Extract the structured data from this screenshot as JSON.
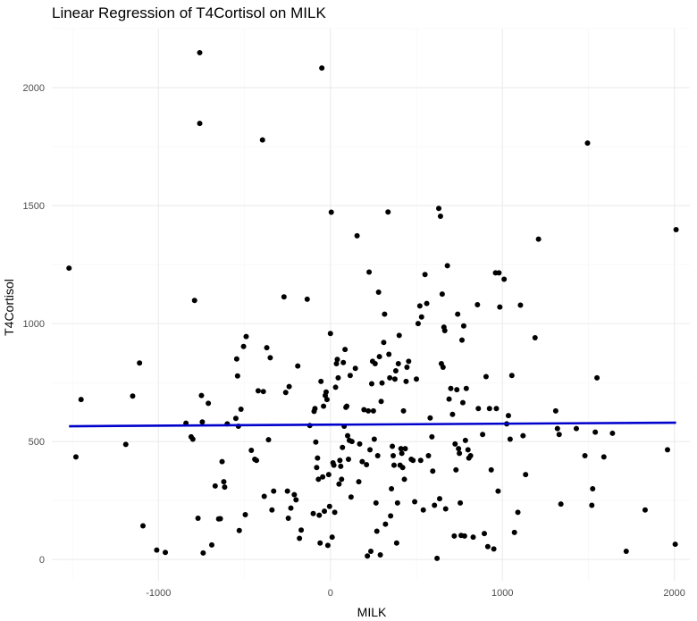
{
  "chart_data": {
    "type": "scatter",
    "title": "Linear Regression of T4Cortisol on MILK",
    "xlabel": "MILK",
    "ylabel": "T4Cortisol",
    "xlim": [
      -1620,
      2090
    ],
    "ylim": [
      -90,
      2250
    ],
    "x_ticks": [
      -1000,
      0,
      1000,
      2000
    ],
    "y_ticks": [
      0,
      500,
      1000,
      1500,
      2000
    ],
    "x_tick_labels": [
      "-1000",
      "0",
      "1000",
      "2000"
    ],
    "y_tick_labels": [
      "0",
      "500",
      "1000",
      "1500",
      "2000"
    ],
    "grid": true,
    "legend": "none",
    "colors": {
      "points": "#000000",
      "regression_line": "#0000cc",
      "grid": "#ebebeb"
    },
    "regression_line": {
      "x": [
        -1520,
        2010
      ],
      "y": [
        565,
        580
      ]
    },
    "points": [
      [
        -1520,
        1235
      ],
      [
        -1480,
        435
      ],
      [
        -1450,
        678
      ],
      [
        -1190,
        488
      ],
      [
        -1150,
        693
      ],
      [
        -1110,
        833
      ],
      [
        -1090,
        143
      ],
      [
        -1010,
        40
      ],
      [
        -960,
        30
      ],
      [
        -840,
        578
      ],
      [
        -810,
        520
      ],
      [
        -800,
        510
      ],
      [
        -790,
        1098
      ],
      [
        -770,
        175
      ],
      [
        -760,
        2148
      ],
      [
        -760,
        1848
      ],
      [
        -750,
        695
      ],
      [
        -745,
        583
      ],
      [
        -740,
        28
      ],
      [
        -710,
        662
      ],
      [
        -690,
        62
      ],
      [
        -670,
        312
      ],
      [
        -650,
        172
      ],
      [
        -640,
        173
      ],
      [
        -630,
        415
      ],
      [
        -620,
        330
      ],
      [
        -615,
        307
      ],
      [
        -600,
        575
      ],
      [
        -550,
        598
      ],
      [
        -545,
        850
      ],
      [
        -540,
        778
      ],
      [
        -535,
        565
      ],
      [
        -530,
        123
      ],
      [
        -520,
        637
      ],
      [
        -505,
        903
      ],
      [
        -495,
        190
      ],
      [
        -490,
        945
      ],
      [
        -460,
        463
      ],
      [
        -440,
        425
      ],
      [
        -430,
        420
      ],
      [
        -420,
        715
      ],
      [
        -395,
        1778
      ],
      [
        -390,
        712
      ],
      [
        -385,
        268
      ],
      [
        -370,
        898
      ],
      [
        -360,
        508
      ],
      [
        -350,
        855
      ],
      [
        -340,
        210
      ],
      [
        -330,
        290
      ],
      [
        -270,
        1113
      ],
      [
        -260,
        708
      ],
      [
        -250,
        290
      ],
      [
        -245,
        175
      ],
      [
        -240,
        733
      ],
      [
        -230,
        218
      ],
      [
        -210,
        275
      ],
      [
        -200,
        253
      ],
      [
        -190,
        820
      ],
      [
        -180,
        90
      ],
      [
        -170,
        125
      ],
      [
        -135,
        1103
      ],
      [
        -120,
        568
      ],
      [
        -100,
        195
      ],
      [
        -95,
        628
      ],
      [
        -90,
        640
      ],
      [
        -85,
        498
      ],
      [
        -80,
        390
      ],
      [
        -75,
        430
      ],
      [
        -70,
        340
      ],
      [
        -65,
        188
      ],
      [
        -60,
        70
      ],
      [
        -55,
        755
      ],
      [
        -50,
        2083
      ],
      [
        -45,
        350
      ],
      [
        -40,
        650
      ],
      [
        -35,
        205
      ],
      [
        -30,
        695
      ],
      [
        -25,
        710
      ],
      [
        -20,
        678
      ],
      [
        -15,
        60
      ],
      [
        -10,
        360
      ],
      [
        -5,
        225
      ],
      [
        0,
        958
      ],
      [
        5,
        1472
      ],
      [
        10,
        95
      ],
      [
        15,
        410
      ],
      [
        20,
        400
      ],
      [
        25,
        200
      ],
      [
        30,
        730
      ],
      [
        35,
        830
      ],
      [
        40,
        848
      ],
      [
        45,
        770
      ],
      [
        50,
        320
      ],
      [
        55,
        420
      ],
      [
        60,
        395
      ],
      [
        65,
        340
      ],
      [
        70,
        475
      ],
      [
        75,
        835
      ],
      [
        80,
        565
      ],
      [
        85,
        890
      ],
      [
        90,
        645
      ],
      [
        95,
        650
      ],
      [
        100,
        525
      ],
      [
        105,
        425
      ],
      [
        110,
        505
      ],
      [
        115,
        780
      ],
      [
        120,
        265
      ],
      [
        125,
        500
      ],
      [
        145,
        810
      ],
      [
        155,
        1372
      ],
      [
        165,
        330
      ],
      [
        170,
        490
      ],
      [
        185,
        415
      ],
      [
        195,
        635
      ],
      [
        210,
        402
      ],
      [
        215,
        15
      ],
      [
        220,
        630
      ],
      [
        225,
        1218
      ],
      [
        230,
        465
      ],
      [
        235,
        35
      ],
      [
        240,
        745
      ],
      [
        245,
        840
      ],
      [
        250,
        630
      ],
      [
        255,
        510
      ],
      [
        260,
        830
      ],
      [
        265,
        240
      ],
      [
        270,
        120
      ],
      [
        275,
        440
      ],
      [
        280,
        1133
      ],
      [
        285,
        860
      ],
      [
        290,
        20
      ],
      [
        295,
        670
      ],
      [
        300,
        748
      ],
      [
        310,
        920
      ],
      [
        315,
        1040
      ],
      [
        320,
        150
      ],
      [
        335,
        1473
      ],
      [
        340,
        870
      ],
      [
        345,
        770
      ],
      [
        350,
        185
      ],
      [
        355,
        300
      ],
      [
        360,
        480
      ],
      [
        365,
        440
      ],
      [
        370,
        400
      ],
      [
        375,
        765
      ],
      [
        380,
        800
      ],
      [
        385,
        70
      ],
      [
        390,
        240
      ],
      [
        395,
        830
      ],
      [
        400,
        950
      ],
      [
        405,
        400
      ],
      [
        410,
        470
      ],
      [
        415,
        450
      ],
      [
        420,
        390
      ],
      [
        425,
        630
      ],
      [
        430,
        340
      ],
      [
        435,
        470
      ],
      [
        440,
        755
      ],
      [
        445,
        815
      ],
      [
        455,
        840
      ],
      [
        470,
        425
      ],
      [
        480,
        420
      ],
      [
        490,
        245
      ],
      [
        500,
        765
      ],
      [
        510,
        1000
      ],
      [
        520,
        1075
      ],
      [
        525,
        420
      ],
      [
        530,
        1028
      ],
      [
        540,
        210
      ],
      [
        550,
        1208
      ],
      [
        560,
        1085
      ],
      [
        570,
        440
      ],
      [
        580,
        600
      ],
      [
        590,
        520
      ],
      [
        595,
        375
      ],
      [
        605,
        230
      ],
      [
        620,
        5
      ],
      [
        630,
        1488
      ],
      [
        635,
        258
      ],
      [
        640,
        1455
      ],
      [
        645,
        830
      ],
      [
        650,
        1125
      ],
      [
        655,
        815
      ],
      [
        660,
        985
      ],
      [
        665,
        970
      ],
      [
        670,
        215
      ],
      [
        680,
        1245
      ],
      [
        690,
        680
      ],
      [
        700,
        725
      ],
      [
        710,
        615
      ],
      [
        720,
        100
      ],
      [
        725,
        490
      ],
      [
        730,
        380
      ],
      [
        735,
        720
      ],
      [
        740,
        1040
      ],
      [
        745,
        470
      ],
      [
        750,
        450
      ],
      [
        755,
        240
      ],
      [
        760,
        102
      ],
      [
        765,
        930
      ],
      [
        770,
        665
      ],
      [
        775,
        990
      ],
      [
        780,
        100
      ],
      [
        785,
        505
      ],
      [
        790,
        725
      ],
      [
        800,
        465
      ],
      [
        805,
        430
      ],
      [
        815,
        440
      ],
      [
        830,
        95
      ],
      [
        855,
        1080
      ],
      [
        860,
        640
      ],
      [
        885,
        530
      ],
      [
        895,
        110
      ],
      [
        905,
        775
      ],
      [
        915,
        55
      ],
      [
        925,
        640
      ],
      [
        935,
        380
      ],
      [
        950,
        45
      ],
      [
        960,
        1215
      ],
      [
        965,
        640
      ],
      [
        975,
        290
      ],
      [
        980,
        1215
      ],
      [
        985,
        1070
      ],
      [
        1010,
        1188
      ],
      [
        1025,
        575
      ],
      [
        1035,
        610
      ],
      [
        1045,
        510
      ],
      [
        1055,
        780
      ],
      [
        1070,
        115
      ],
      [
        1090,
        200
      ],
      [
        1105,
        1078
      ],
      [
        1120,
        525
      ],
      [
        1135,
        360
      ],
      [
        1190,
        940
      ],
      [
        1210,
        1358
      ],
      [
        1310,
        630
      ],
      [
        1320,
        555
      ],
      [
        1330,
        530
      ],
      [
        1340,
        235
      ],
      [
        1430,
        555
      ],
      [
        1480,
        440
      ],
      [
        1495,
        1765
      ],
      [
        1520,
        230
      ],
      [
        1525,
        300
      ],
      [
        1540,
        540
      ],
      [
        1550,
        770
      ],
      [
        1590,
        435
      ],
      [
        1640,
        535
      ],
      [
        1720,
        35
      ],
      [
        1830,
        210
      ],
      [
        1960,
        465
      ],
      [
        2010,
        1398
      ],
      [
        2005,
        65
      ]
    ]
  }
}
